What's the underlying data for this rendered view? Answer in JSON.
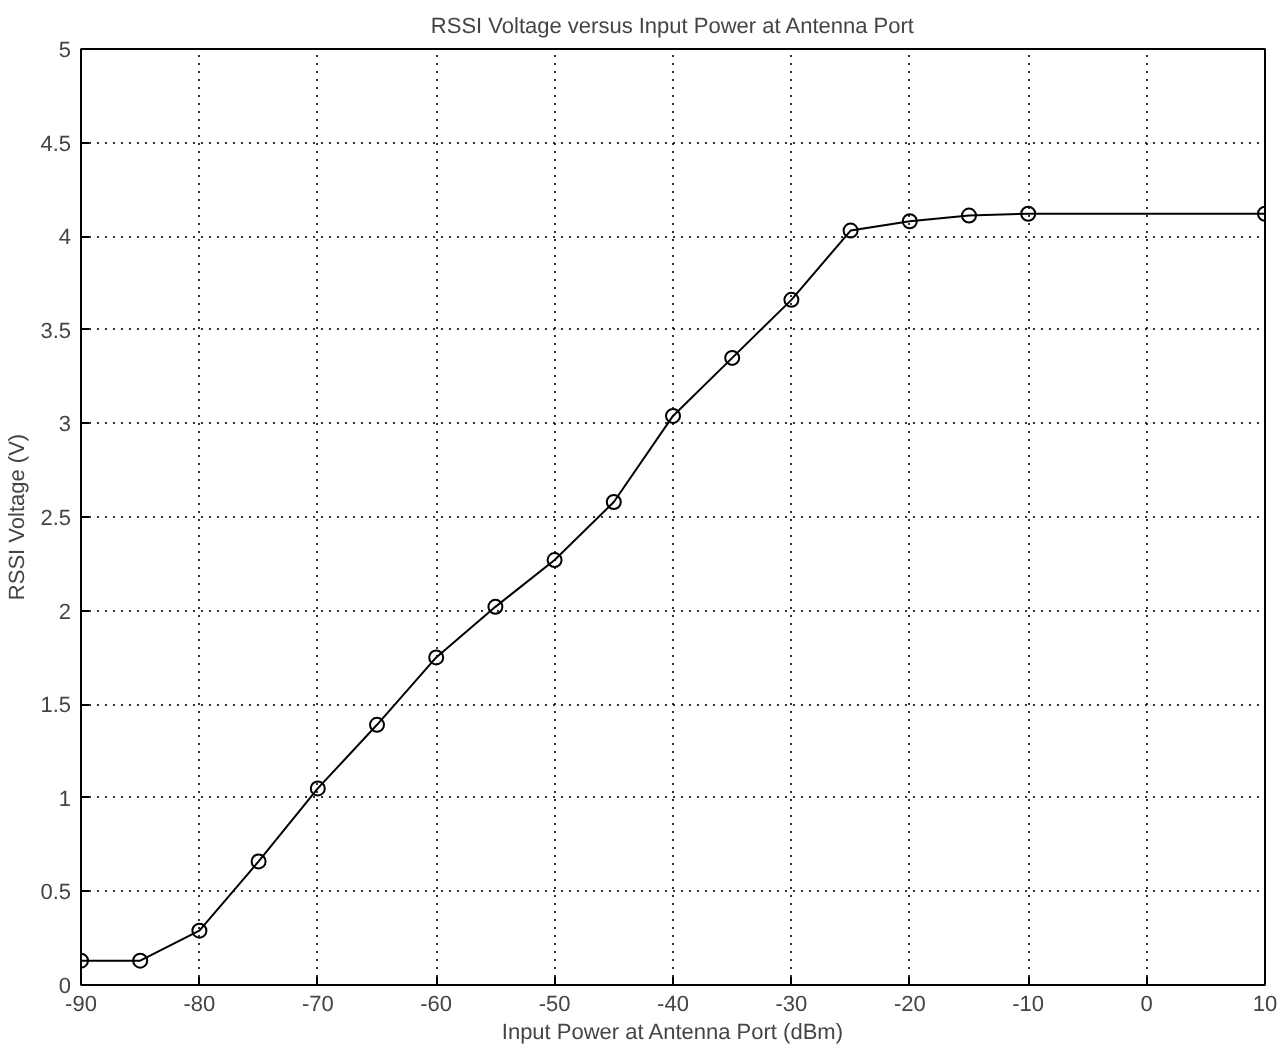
{
  "chart_data": {
    "type": "line",
    "title": "RSSI Voltage versus Input Power at Antenna Port",
    "xlabel": "Input Power at Antenna Port (dBm)",
    "ylabel": "RSSI Voltage (V)",
    "x": [
      -90,
      -85,
      -80,
      -75,
      -70,
      -65,
      -60,
      -55,
      -50,
      -45,
      -40,
      -35,
      -30,
      -25,
      -20,
      -15,
      -10,
      10
    ],
    "series": [
      {
        "color": "#000000",
        "values": [
          0.13,
          0.13,
          0.29,
          0.66,
          1.05,
          1.39,
          1.75,
          2.02,
          2.27,
          2.58,
          3.04,
          3.35,
          3.66,
          4.03,
          4.08,
          4.11,
          4.12,
          4.12
        ]
      }
    ],
    "xlim": [
      -90,
      10
    ],
    "ylim": [
      0,
      5
    ],
    "xticks": [
      -90,
      -80,
      -70,
      -60,
      -50,
      -40,
      -30,
      -20,
      -10,
      0,
      10
    ],
    "yticks": [
      0,
      0.5,
      1,
      1.5,
      2,
      2.5,
      3,
      3.5,
      4,
      4.5,
      5
    ],
    "grid": true,
    "marker": "circle",
    "line_style": "solid"
  }
}
